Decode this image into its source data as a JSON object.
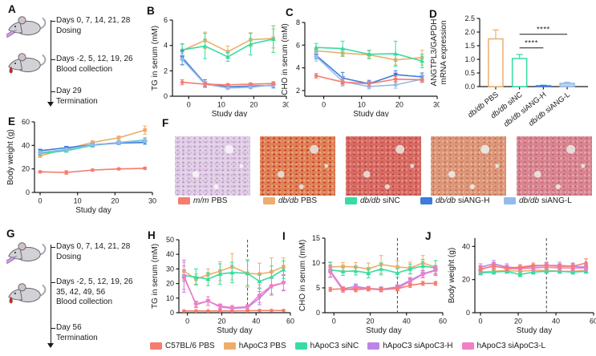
{
  "panel_labels": {
    "A": "A",
    "B": "B",
    "C": "C",
    "D": "D",
    "E": "E",
    "F": "F",
    "G": "G",
    "H": "H",
    "I": "I",
    "J": "J"
  },
  "timelines": {
    "A": {
      "events": [
        {
          "line1": "Days 0, 7, 14, 21, 28",
          "line2": "Dosing"
        },
        {
          "line1": "Days -2, 5, 12, 19, 26",
          "line2": "Blood collection"
        },
        {
          "line1": "Day 29",
          "line2": "Termination"
        }
      ]
    },
    "G": {
      "events": [
        {
          "line1": "Days 0, 7, 14, 21, 28",
          "line2": "Dosing"
        },
        {
          "line1": "Days -2, 5, 12, 19, 26",
          "line1b": "35, 42, 49, 56",
          "line2": "Blood collection"
        },
        {
          "line1": "Day 56",
          "line2": "Termination"
        }
      ]
    }
  },
  "chart_data": [
    {
      "id": "B",
      "type": "line",
      "xlabel": "Study day",
      "ylabel": "TG in serum (mM)",
      "xlim": [
        -5,
        30
      ],
      "ylim": [
        0,
        6
      ],
      "xticks": [
        0,
        10,
        20,
        30
      ],
      "yticks": [
        0,
        2,
        4,
        6
      ],
      "x": [
        -2,
        5,
        12,
        19,
        26
      ],
      "series": [
        {
          "name": "db/db PBS",
          "color": "#EDAE6B",
          "marker": "square",
          "values": [
            3.6,
            4.4,
            3.5,
            4.45,
            4.55
          ],
          "err": [
            0.55,
            0.65,
            0.45,
            0.55,
            0.75
          ]
        },
        {
          "name": "db/db siNC",
          "color": "#35DDA0",
          "marker": "triangle",
          "values": [
            3.65,
            3.95,
            3.1,
            4.1,
            4.5
          ],
          "err": [
            0.45,
            1.0,
            0.35,
            0.85,
            1.05
          ]
        },
        {
          "name": "db/db siANG-H",
          "color": "#3C7CDB",
          "marker": "tridown",
          "values": [
            3.05,
            1.0,
            0.75,
            0.8,
            0.85
          ],
          "err": [
            0.55,
            0.3,
            0.15,
            0.15,
            0.2
          ]
        },
        {
          "name": "db/db siANG-L",
          "color": "#93BBEB",
          "marker": "diamond",
          "values": [
            2.9,
            0.95,
            0.65,
            0.7,
            0.9
          ],
          "err": [
            0.45,
            0.2,
            0.1,
            0.1,
            0.15
          ]
        },
        {
          "name": "m/m PBS",
          "color": "#F57C6E",
          "marker": "circle",
          "values": [
            1.1,
            0.95,
            0.9,
            0.95,
            1.0
          ],
          "err": [
            0.2,
            0.15,
            0.1,
            0.1,
            0.15
          ]
        }
      ]
    },
    {
      "id": "C",
      "type": "line",
      "xlabel": "Study day",
      "ylabel": "CHO in serum (mM)",
      "xlim": [
        -5,
        30
      ],
      "ylim": [
        1.5,
        8
      ],
      "xticks": [
        0,
        10,
        20,
        30
      ],
      "yticks": [
        2,
        4,
        6,
        8
      ],
      "x": [
        -2,
        5,
        12,
        19,
        26
      ],
      "series": [
        {
          "name": "db/db PBS",
          "color": "#EDAE6B",
          "marker": "square",
          "values": [
            5.5,
            5.3,
            5.15,
            4.7,
            4.9
          ],
          "err": [
            0.3,
            0.3,
            0.35,
            0.45,
            0.65
          ]
        },
        {
          "name": "db/db siNC",
          "color": "#35DDA0",
          "marker": "triangle",
          "values": [
            5.8,
            5.7,
            5.2,
            5.25,
            4.6
          ],
          "err": [
            0.35,
            0.65,
            0.35,
            1.1,
            0.6
          ]
        },
        {
          "name": "db/db siANG-H",
          "color": "#3C7CDB",
          "marker": "tridown",
          "values": [
            5.1,
            3.1,
            2.6,
            3.4,
            3.2
          ],
          "err": [
            0.3,
            0.5,
            0.3,
            0.35,
            0.35
          ]
        },
        {
          "name": "db/db siANG-L",
          "color": "#93BBEB",
          "marker": "diamond",
          "values": [
            5.0,
            2.8,
            2.35,
            2.5,
            3.0
          ],
          "err": [
            0.4,
            0.4,
            0.2,
            0.3,
            0.3
          ]
        },
        {
          "name": "m/m PBS",
          "color": "#F57C6E",
          "marker": "circle",
          "values": [
            3.3,
            2.75,
            2.6,
            3.0,
            2.95
          ],
          "err": [
            0.2,
            0.25,
            0.2,
            0.25,
            0.2
          ]
        }
      ]
    },
    {
      "id": "D",
      "type": "bar",
      "ylabel_lines": [
        "ANGTPL3/GAPDH",
        "mRNA expression"
      ],
      "ylim": [
        0,
        2.5
      ],
      "yticks": [
        0,
        0.5,
        1,
        1.5,
        2,
        2.5
      ],
      "ytick_labels": [
        "0.0",
        "0.5",
        "1.0",
        "1.5",
        "2.0",
        "2.5"
      ],
      "categories": [
        "db/db PBS",
        "db/db siNC",
        "db/db siANG-H",
        "db/db siANG-L"
      ],
      "values": [
        1.75,
        1.03,
        0.03,
        0.12
      ],
      "errors": [
        0.33,
        0.15,
        0.02,
        0.04
      ],
      "bar_colors": [
        "#EDAE6B",
        "#35DDA0",
        "#3C7CDB",
        "#93BBEB"
      ],
      "bar_fills": [
        "#FFFFFF",
        "#FFFFFF",
        "#3C7CDB",
        "#BCD4F1"
      ],
      "significance": [
        {
          "from": 1,
          "to": 2,
          "y": 1.42,
          "label": "****"
        },
        {
          "from": 1,
          "to": 3,
          "y": 1.92,
          "label": "****"
        }
      ]
    },
    {
      "id": "E",
      "type": "line",
      "xlabel": "Study day",
      "ylabel": "Body weight (g)",
      "xlim": [
        -1.5,
        30
      ],
      "ylim": [
        0,
        60
      ],
      "xticks": [
        0,
        10,
        20,
        30
      ],
      "yticks": [
        0,
        20,
        40,
        60
      ],
      "x": [
        0,
        7,
        14,
        21,
        28
      ],
      "series": [
        {
          "name": "db/db PBS",
          "color": "#EDAE6B",
          "marker": "square",
          "values": [
            31,
            37,
            42.5,
            46.5,
            53
          ],
          "err": [
            1,
            1.5,
            1.5,
            1.5,
            3.5
          ]
        },
        {
          "name": "db/db siNC",
          "color": "#35DDA0",
          "marker": "triangle",
          "values": [
            33,
            35.5,
            40,
            42.5,
            44.5
          ],
          "err": [
            1,
            1.2,
            1.5,
            1.5,
            2
          ]
        },
        {
          "name": "db/db siANG-H",
          "color": "#3C7CDB",
          "marker": "tridown",
          "values": [
            35.5,
            38,
            40.5,
            42,
            42.5
          ],
          "err": [
            1,
            1,
            1.2,
            1.2,
            1.5
          ]
        },
        {
          "name": "db/db siANG-L",
          "color": "#93BBEB",
          "marker": "diamond",
          "values": [
            34,
            36.5,
            40.5,
            42.5,
            44
          ],
          "err": [
            1,
            1,
            1,
            1.2,
            1.5
          ]
        },
        {
          "name": "m/m PBS",
          "color": "#F57C6E",
          "marker": "circle",
          "values": [
            17.5,
            17,
            19,
            20,
            20.5
          ],
          "err": [
            0.8,
            1.5,
            0.8,
            0.8,
            0.8
          ]
        }
      ]
    },
    {
      "id": "H",
      "type": "line",
      "xlabel": "Study day",
      "ylabel": "TG in serum (mM)",
      "xlim": [
        -5,
        60
      ],
      "ylim": [
        0,
        50
      ],
      "xticks": [
        0,
        20,
        40,
        60
      ],
      "yticks": [
        0,
        10,
        20,
        30,
        40,
        50
      ],
      "vline": 35,
      "x": [
        -2,
        5,
        12,
        19,
        26,
        35,
        42,
        49,
        56
      ],
      "series": [
        {
          "name": "hApoC3 PBS",
          "color": "#EDAE6B",
          "marker": "square",
          "values": [
            28.5,
            23,
            26,
            28.5,
            31.5,
            27,
            26.5,
            28,
            31.5
          ],
          "err": [
            6,
            3.5,
            4,
            6.5,
            9,
            9.5,
            7.5,
            9.5,
            6
          ]
        },
        {
          "name": "hApoC3 siNC",
          "color": "#35DDA0",
          "marker": "triangle",
          "values": [
            25.5,
            24.5,
            23,
            26.5,
            27.5,
            27,
            21.5,
            24.5,
            29.5
          ],
          "err": [
            4,
            5.5,
            4.5,
            7,
            7,
            8.5,
            5,
            7.5,
            6
          ]
        },
        {
          "name": "hApoC3 siApoC3-H",
          "color": "#BD83E8",
          "marker": "tridown",
          "values": [
            25,
            5.5,
            8,
            4,
            3,
            3.5,
            10,
            18,
            20.5
          ],
          "err": [
            11,
            2,
            3,
            1.5,
            1,
            1.5,
            4.5,
            6,
            5.5
          ]
        },
        {
          "name": "hApoC3 siApoC3-L",
          "color": "#F07FC6",
          "marker": "diamond",
          "values": [
            24,
            6,
            8,
            4.5,
            3.5,
            4,
            12,
            18.5,
            20.5
          ],
          "err": [
            8,
            2,
            3,
            1.5,
            1.5,
            1.5,
            5,
            5.5,
            5
          ]
        },
        {
          "name": "C57BL/6 PBS",
          "color": "#F57C6E",
          "marker": "circle",
          "values": [
            1.2,
            1.2,
            1.2,
            1.2,
            1.2,
            1.3,
            1.5,
            1.5,
            1.5
          ],
          "err": [
            0.3,
            0.3,
            0.3,
            0.3,
            0.3,
            0.3,
            0.4,
            0.4,
            0.4
          ]
        }
      ]
    },
    {
      "id": "I",
      "type": "line",
      "xlabel": "Study day",
      "ylabel": "CHO in serum (mM)",
      "xlim": [
        -5,
        60
      ],
      "ylim": [
        0,
        15
      ],
      "xticks": [
        0,
        20,
        40,
        60
      ],
      "yticks": [
        0,
        5,
        10,
        15
      ],
      "vline": 35,
      "x": [
        -2,
        5,
        12,
        19,
        26,
        35,
        42,
        49,
        56
      ],
      "series": [
        {
          "name": "hApoC3 PBS",
          "color": "#EDAE6B",
          "marker": "square",
          "values": [
            9.2,
            9.3,
            9.2,
            8.8,
            9.7,
            9.2,
            9.0,
            10.0,
            9.2
          ],
          "err": [
            1,
            0.8,
            0.9,
            1.2,
            1.8,
            1.2,
            1.2,
            1.5,
            1.3
          ]
        },
        {
          "name": "hApoC3 siNC",
          "color": "#35DDA0",
          "marker": "triangle",
          "values": [
            8.6,
            8.3,
            8.4,
            8.0,
            8.8,
            8.0,
            8.8,
            9.4,
            9.0
          ],
          "err": [
            1.5,
            0.8,
            0.8,
            1.0,
            1.2,
            0.9,
            1.0,
            1.3,
            1.5
          ]
        },
        {
          "name": "hApoC3 siApoC3-H",
          "color": "#BD83E8",
          "marker": "tridown",
          "values": [
            8.4,
            4.8,
            5.3,
            4.9,
            4.7,
            5.2,
            6.5,
            7.8,
            8.6
          ],
          "err": [
            1.2,
            0.4,
            0.5,
            0.4,
            0.5,
            0.4,
            0.6,
            0.7,
            0.8
          ]
        },
        {
          "name": "hApoC3 siApoC3-L",
          "color": "#F07FC6",
          "marker": "diamond",
          "values": [
            8.2,
            4.5,
            5.0,
            4.8,
            4.6,
            4.9,
            6.3,
            7.7,
            8.5
          ],
          "err": [
            1.0,
            0.4,
            0.4,
            0.4,
            0.4,
            0.4,
            0.6,
            0.7,
            0.8
          ]
        },
        {
          "name": "C57BL/6 PBS",
          "color": "#F57C6E",
          "marker": "circle",
          "values": [
            4.7,
            4.8,
            4.6,
            4.8,
            4.7,
            4.8,
            5.5,
            5.9,
            5.9
          ],
          "err": [
            0.4,
            0.4,
            0.4,
            0.4,
            0.4,
            0.4,
            0.4,
            0.4,
            0.4
          ]
        }
      ]
    },
    {
      "id": "J",
      "type": "line",
      "xlabel": "Study day",
      "ylabel": "Body weight (g)",
      "xlim": [
        -3,
        60
      ],
      "ylim": [
        0,
        45
      ],
      "xticks": [
        0,
        20,
        40,
        60
      ],
      "yticks": [
        0,
        20,
        40
      ],
      "vline": 35,
      "x": [
        0,
        7,
        14,
        21,
        28,
        35,
        42,
        49,
        56
      ],
      "series": [
        {
          "name": "hApoC3 PBS",
          "color": "#EDAE6B",
          "marker": "square",
          "values": [
            24.5,
            25,
            25.5,
            25,
            25.5,
            25.5,
            25,
            25,
            25.5
          ],
          "err": [
            1.2,
            1.2,
            1.2,
            1.2,
            1.2,
            1.2,
            1.2,
            1.2,
            1.2
          ]
        },
        {
          "name": "hApoC3 siNC",
          "color": "#35DDA0",
          "marker": "triangle",
          "values": [
            24,
            24.5,
            25,
            23,
            24.5,
            25,
            25,
            24.5,
            25
          ],
          "err": [
            1.2,
            1.2,
            1.2,
            1.2,
            1.2,
            1.2,
            1.2,
            1.2,
            1.2
          ]
        },
        {
          "name": "hApoC3 siApoC3-H",
          "color": "#BD83E8",
          "marker": "tridown",
          "values": [
            27.5,
            29.5,
            27.5,
            27,
            28,
            28.5,
            28.5,
            28,
            27.5
          ],
          "err": [
            2,
            2,
            2,
            2,
            2,
            2,
            2,
            2,
            1.5
          ]
        },
        {
          "name": "hApoC3 siApoC3-L",
          "color": "#F07FC6",
          "marker": "diamond",
          "values": [
            26,
            28.5,
            26.5,
            26.5,
            27,
            27.5,
            27,
            27,
            27
          ],
          "err": [
            1.5,
            1.5,
            1.5,
            1.5,
            1.5,
            1.5,
            1.5,
            1.5,
            1.5
          ]
        },
        {
          "name": "C57BL/6 PBS",
          "color": "#F57C6E",
          "marker": "circle",
          "values": [
            26.5,
            28,
            27,
            27.5,
            28.5,
            28.5,
            28,
            28,
            30
          ],
          "err": [
            1.5,
            1.5,
            1.5,
            1.5,
            1.5,
            1.5,
            1.5,
            1.5,
            2.5
          ]
        }
      ]
    }
  ],
  "histology": {
    "images": [
      {
        "name": "m/m PBS liver section",
        "base": "#E3D3E6",
        "s1": "#B792C4",
        "s2": "#D4BBDC",
        "blob": "#F6F0F7"
      },
      {
        "name": "db/db PBS liver section",
        "base": "#DE8158",
        "s1": "#C23318",
        "s2": "#E8A37A",
        "blob": "#E5D8CE"
      },
      {
        "name": "db/db siNC liver section",
        "base": "#D76B63",
        "s1": "#BE3D3A",
        "s2": "#E39188",
        "blob": "#E7D6D0"
      },
      {
        "name": "db/db siANG-H liver section",
        "base": "#DC9678",
        "s1": "#C56A4E",
        "s2": "#E5B49C",
        "blob": "#EAE3DF"
      },
      {
        "name": "db/db siANG-L liver section",
        "base": "#D88590",
        "s1": "#C25B6E",
        "s2": "#E3A7AC",
        "blob": "#E9DDDB"
      }
    ],
    "legend": [
      {
        "prefix": "m/m",
        "rest": "PBS",
        "color": "#F57C6E"
      },
      {
        "prefix": "db/db",
        "rest": "PBS",
        "color": "#EDAE6B"
      },
      {
        "prefix": "db/db",
        "rest": "siNC",
        "color": "#35DDA0"
      },
      {
        "prefix": "db/db",
        "rest": "siANG-H",
        "color": "#3C7CDB"
      },
      {
        "prefix": "db/db",
        "rest": "siANG-L",
        "color": "#93BBEB"
      }
    ]
  },
  "legend_bottom": [
    {
      "label": "C57BL/6 PBS",
      "color": "#F57C6E"
    },
    {
      "label": "hApoC3 PBS",
      "color": "#EDAE6B"
    },
    {
      "label": "hApoC3 siNC",
      "color": "#35DDA0"
    },
    {
      "label": "hApoC3 siApoC3-H",
      "color": "#BD83E8"
    },
    {
      "label": "hApoC3 siApoC3-L",
      "color": "#F07FC6"
    }
  ]
}
